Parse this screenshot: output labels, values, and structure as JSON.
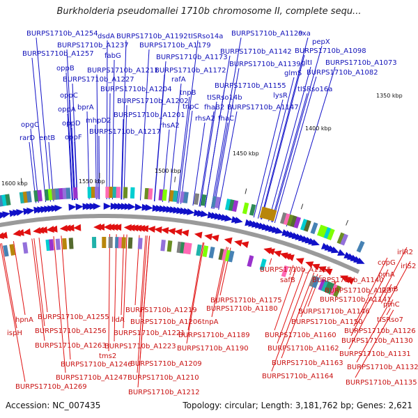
{
  "title": "Burkholderia pseudomallei 1710b chromosome II, complete sequ...",
  "footer": {
    "accession": "Accession: NC_007435",
    "info": "Topology: circular; Length: 3,181,762 bp; Genes: 2,621"
  },
  "colors": {
    "forward": "#1010c8",
    "reverse": "#e01010",
    "axis": "#808080",
    "cog_palette": [
      "#7fff00",
      "#00ced1",
      "#556b2f",
      "#9370db",
      "#20b2aa",
      "#b8860b",
      "#ff69b4",
      "#4682b4",
      "#808080",
      "#6b8e23",
      "#9932cc",
      "#2e8b57"
    ]
  },
  "ticks": [
    "1350 kbp",
    "1400 kbp",
    "1450 kbp",
    "1500 kbp",
    "1550 kbp",
    "1600 kbp"
  ],
  "forward_labels": [
    "BURPS1710b_A1254",
    "oxa",
    "BURPS1710b_A1129",
    "dsdA",
    "BURPS1710b_A1192",
    "tISRso14a",
    "pepX",
    "BURPS1710b_A1237",
    "BURPS1710b_A1179",
    "BURPS1710b_A1142",
    "BURPS1710b_A1098",
    "BURPS1710b_A1257",
    "fabG",
    "BURPS1710b_A1173",
    "gltI",
    "BURPS1710b_A1073",
    "BURPS1710b_A1139",
    "glmS",
    "BURPS1710b_A1082",
    "oppB",
    "BURPS1710b_A1211",
    "BURPS1710b_A1172",
    "BURPS1710b_A1227",
    "rafA",
    "BURPS1710b_A1155",
    "tISRso16a",
    "BURPS1710b_A1204",
    "tnpB",
    "oppC",
    "lysR",
    "tISRso14b",
    "bprA",
    "BURPS1710b_A1202",
    "oppA",
    "tnpC",
    "fhaB2",
    "BURPS1710b_A1147",
    "mhpD2",
    "BURPS1710b_A1201",
    "rhsA2",
    "fhaC",
    "oppD",
    "rhsA2",
    "opgC",
    "BURPS1710b_A1217",
    "oppF",
    "rarD",
    "entB"
  ],
  "reverse_labels": [
    "BURPS1710b_A1165",
    "copG",
    "irlR2",
    "irlS2",
    "safB",
    "BURPS1710b_A1140",
    "prnA",
    "BURPS1710b_A1137",
    "BURPS1710b_A1175",
    "prnB",
    "BURPS1710b_A1141",
    "BURPS1710b_A1180",
    "BURPS1710b_A1255",
    "BURPS1710b_A1219",
    "prnC",
    "BURPS1710b_A1146",
    "hpnA",
    "lldA",
    "BURPS1710b_A1206",
    "tnpA",
    "BURPS1710b_A1150",
    "tISRso7",
    "BURPS1710b_A1256",
    "BURPS1710b_A1221",
    "BURPS1710b_A1126",
    "ispH",
    "BURPS1710b_A1189",
    "BURPS1710b_A1160",
    "BURPS1710b_A1130",
    "BURPS1710b_A1263",
    "BURPS1710b_A1223",
    "tms2",
    "BURPS1710b_A1190",
    "BURPS1710b_A1162",
    "BURPS1710b_A1131",
    "BURPS1710b_A1246",
    "BURPS1710b_A1209",
    "BURPS1710b_A1163",
    "BURPS1710b_A1132",
    "BURPS1710b_A1247",
    "BURPS1710b_A1210",
    "BURPS1710b_A1164",
    "BURPS1710b_A1269",
    "BURPS1710b_A1135",
    "BURPS1710b_A1212"
  ]
}
